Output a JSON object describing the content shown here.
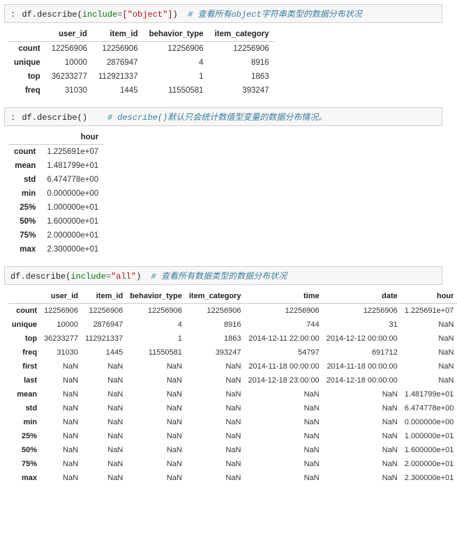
{
  "cell1": {
    "prefix": ":",
    "code_obj": "df",
    "code_method": "describe",
    "arg_key": "include",
    "arg_val": "[\"object\"]",
    "comment": "# 查看所有object字符串类型的数据分布状况"
  },
  "table1": {
    "cols": [
      "user_id",
      "item_id",
      "behavior_type",
      "item_category"
    ],
    "rows": [
      {
        "label": "count",
        "cells": [
          "12256906",
          "12256906",
          "12256906",
          "12256906"
        ]
      },
      {
        "label": "unique",
        "cells": [
          "10000",
          "2876947",
          "4",
          "8916"
        ]
      },
      {
        "label": "top",
        "cells": [
          "36233277",
          "112921337",
          "1",
          "1863"
        ]
      },
      {
        "label": "freq",
        "cells": [
          "31030",
          "1445",
          "11550581",
          "393247"
        ]
      }
    ]
  },
  "cell2": {
    "prefix": ":",
    "code_obj": "df",
    "code_method": "describe",
    "args": "()",
    "comment": "# describe()默认只会统计数值型变量的数据分布情况。"
  },
  "table2": {
    "cols": [
      "hour"
    ],
    "rows": [
      {
        "label": "count",
        "cells": [
          "1.225691e+07"
        ]
      },
      {
        "label": "mean",
        "cells": [
          "1.481799e+01"
        ]
      },
      {
        "label": "std",
        "cells": [
          "6.474778e+00"
        ]
      },
      {
        "label": "min",
        "cells": [
          "0.000000e+00"
        ]
      },
      {
        "label": "25%",
        "cells": [
          "1.000000e+01"
        ]
      },
      {
        "label": "50%",
        "cells": [
          "1.600000e+01"
        ]
      },
      {
        "label": "75%",
        "cells": [
          "2.000000e+01"
        ]
      },
      {
        "label": "max",
        "cells": [
          "2.300000e+01"
        ]
      }
    ]
  },
  "cell3": {
    "code_obj": "df",
    "code_method": "describe",
    "arg_key": "include",
    "arg_val": "\"all\"",
    "comment": "# 查看所有数据类型的数据分布状况"
  },
  "table3": {
    "cols": [
      "user_id",
      "item_id",
      "behavior_type",
      "item_category",
      "time",
      "date",
      "hour"
    ],
    "rows": [
      {
        "label": "count",
        "cells": [
          "12256906",
          "12256906",
          "12256906",
          "12256906",
          "12256906",
          "12256906",
          "1.225691e+07"
        ]
      },
      {
        "label": "unique",
        "cells": [
          "10000",
          "2876947",
          "4",
          "8916",
          "744",
          "31",
          "NaN"
        ]
      },
      {
        "label": "top",
        "cells": [
          "36233277",
          "112921337",
          "1",
          "1863",
          "2014-12-11 22:00:00",
          "2014-12-12 00:00:00",
          "NaN"
        ]
      },
      {
        "label": "freq",
        "cells": [
          "31030",
          "1445",
          "11550581",
          "393247",
          "54797",
          "691712",
          "NaN"
        ]
      },
      {
        "label": "first",
        "cells": [
          "NaN",
          "NaN",
          "NaN",
          "NaN",
          "2014-11-18 00:00:00",
          "2014-11-18 00:00:00",
          "NaN"
        ]
      },
      {
        "label": "last",
        "cells": [
          "NaN",
          "NaN",
          "NaN",
          "NaN",
          "2014-12-18 23:00:00",
          "2014-12-18 00:00:00",
          "NaN"
        ]
      },
      {
        "label": "mean",
        "cells": [
          "NaN",
          "NaN",
          "NaN",
          "NaN",
          "NaN",
          "NaN",
          "1.481799e+01"
        ]
      },
      {
        "label": "std",
        "cells": [
          "NaN",
          "NaN",
          "NaN",
          "NaN",
          "NaN",
          "NaN",
          "6.474778e+00"
        ]
      },
      {
        "label": "min",
        "cells": [
          "NaN",
          "NaN",
          "NaN",
          "NaN",
          "NaN",
          "NaN",
          "0.000000e+00"
        ]
      },
      {
        "label": "25%",
        "cells": [
          "NaN",
          "NaN",
          "NaN",
          "NaN",
          "NaN",
          "NaN",
          "1.000000e+01"
        ]
      },
      {
        "label": "50%",
        "cells": [
          "NaN",
          "NaN",
          "NaN",
          "NaN",
          "NaN",
          "NaN",
          "1.600000e+01"
        ]
      },
      {
        "label": "75%",
        "cells": [
          "NaN",
          "NaN",
          "NaN",
          "NaN",
          "NaN",
          "NaN",
          "2.000000e+01"
        ]
      },
      {
        "label": "max",
        "cells": [
          "NaN",
          "NaN",
          "NaN",
          "NaN",
          "NaN",
          "NaN",
          "2.300000e+01"
        ]
      }
    ]
  }
}
